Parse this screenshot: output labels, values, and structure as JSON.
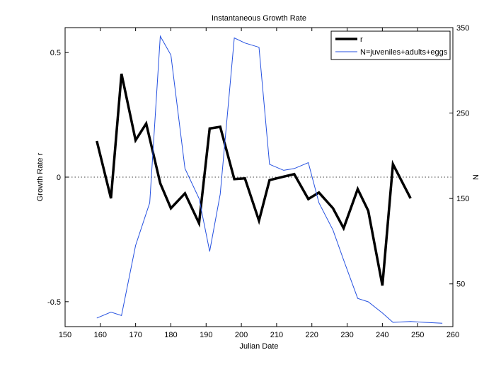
{
  "chart_data": {
    "type": "line",
    "title": "Instantaneous Growth Rate",
    "xlabel": "Julian Date",
    "ylabel": "Growth Rate r",
    "ylabel_right": "N",
    "xlim": [
      150,
      260
    ],
    "ylim": [
      -0.6,
      0.6
    ],
    "ylim_right": [
      0,
      350
    ],
    "x_ticks": [
      "150",
      "160",
      "170",
      "180",
      "190",
      "200",
      "210",
      "220",
      "230",
      "240",
      "250",
      "260"
    ],
    "y_ticks": [
      "0.5",
      "0",
      "-0.5"
    ],
    "y_ticks_right": [
      "350",
      "250",
      "150",
      "50"
    ],
    "grid": false,
    "reference_line": {
      "y": 0,
      "style": "dotted"
    },
    "legend_position": "top-right",
    "series": [
      {
        "name": "r",
        "axis": "left",
        "color": "#000000",
        "x": [
          159,
          163,
          166,
          170,
          173,
          177,
          180,
          184,
          188,
          191,
          194,
          198,
          201,
          205,
          208,
          212,
          215,
          219,
          222,
          226,
          229,
          233,
          236,
          240,
          243,
          248
        ],
        "y": [
          0.145,
          -0.085,
          0.415,
          0.148,
          0.215,
          -0.025,
          -0.125,
          -0.065,
          -0.185,
          0.195,
          0.202,
          -0.008,
          -0.005,
          -0.175,
          -0.012,
          0.002,
          0.012,
          -0.088,
          -0.062,
          -0.125,
          -0.205,
          -0.048,
          -0.135,
          -0.435,
          0.052,
          -0.085
        ]
      },
      {
        "name": "N=juveniles+adults+eggs",
        "axis": "right",
        "color": "#2450e0",
        "x": [
          159,
          163,
          166,
          170,
          174,
          177,
          180,
          184,
          188,
          191,
          194,
          198,
          201,
          205,
          208,
          212,
          215,
          219,
          222,
          226,
          229,
          233,
          236,
          240,
          243,
          248,
          252,
          257
        ],
        "y": [
          10,
          17,
          13,
          95,
          145,
          340,
          318,
          185,
          150,
          88,
          155,
          338,
          332,
          327,
          190,
          183,
          185,
          192,
          145,
          113,
          78,
          33,
          29,
          16,
          5,
          6,
          5,
          4
        ]
      }
    ]
  }
}
